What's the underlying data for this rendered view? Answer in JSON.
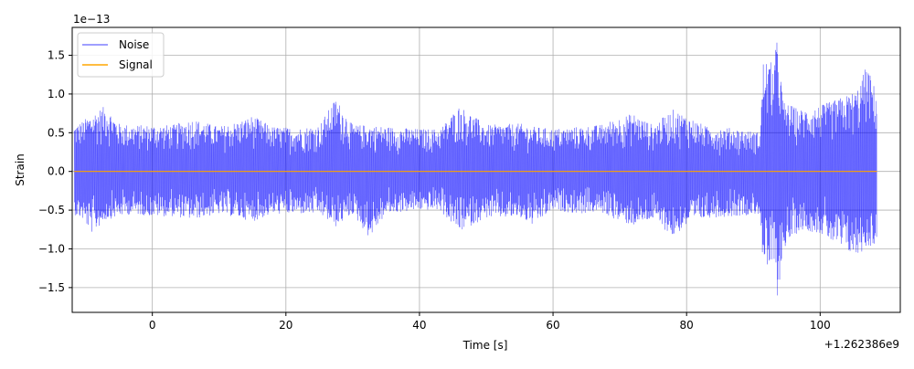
{
  "chart_data": {
    "type": "line",
    "xlabel": "Time [s]",
    "ylabel": "Strain",
    "x_offset_label": "+1.262386e9",
    "y_scale_label": "1e−13",
    "xlim": [
      -12,
      112
    ],
    "ylim": [
      -1.82,
      1.86
    ],
    "x_ticks": [
      0,
      20,
      40,
      60,
      80,
      100
    ],
    "x_tick_labels": [
      "0",
      "20",
      "40",
      "60",
      "80",
      "100"
    ],
    "y_ticks": [
      -1.5,
      -1.0,
      -0.5,
      0.0,
      0.5,
      1.0,
      1.5
    ],
    "y_tick_labels": [
      "−1.5",
      "−1.0",
      "−0.5",
      "0.0",
      "0.5",
      "1.0",
      "1.5"
    ],
    "grid": true,
    "legend_position": "upper-left",
    "series": [
      {
        "name": "Noise",
        "color": "#0000ff",
        "x_range": [
          -11.7,
          108.5
        ],
        "envelope": [
          {
            "x": -11.7,
            "lo": -0.56,
            "hi": 0.6
          },
          {
            "x": -10.5,
            "lo": -0.62,
            "hi": 0.65
          },
          {
            "x": -9,
            "lo": -0.8,
            "hi": 0.75
          },
          {
            "x": -7,
            "lo": -0.63,
            "hi": 0.85
          },
          {
            "x": -5,
            "lo": -0.58,
            "hi": 0.62
          },
          {
            "x": -3,
            "lo": -0.55,
            "hi": 0.6
          },
          {
            "x": 0,
            "lo": -0.58,
            "hi": 0.6
          },
          {
            "x": 3,
            "lo": -0.58,
            "hi": 0.6
          },
          {
            "x": 6,
            "lo": -0.62,
            "hi": 0.68
          },
          {
            "x": 10,
            "lo": -0.55,
            "hi": 0.58
          },
          {
            "x": 13,
            "lo": -0.6,
            "hi": 0.65
          },
          {
            "x": 15,
            "lo": -0.65,
            "hi": 0.72
          },
          {
            "x": 18,
            "lo": -0.55,
            "hi": 0.58
          },
          {
            "x": 22,
            "lo": -0.55,
            "hi": 0.56
          },
          {
            "x": 25,
            "lo": -0.55,
            "hi": 0.6
          },
          {
            "x": 27.5,
            "lo": -0.72,
            "hi": 0.95
          },
          {
            "x": 30,
            "lo": -0.55,
            "hi": 0.6
          },
          {
            "x": 32.5,
            "lo": -0.86,
            "hi": 0.6
          },
          {
            "x": 35,
            "lo": -0.55,
            "hi": 0.58
          },
          {
            "x": 40,
            "lo": -0.5,
            "hi": 0.55
          },
          {
            "x": 43,
            "lo": -0.5,
            "hi": 0.55
          },
          {
            "x": 46,
            "lo": -0.78,
            "hi": 0.85
          },
          {
            "x": 50,
            "lo": -0.6,
            "hi": 0.6
          },
          {
            "x": 55,
            "lo": -0.6,
            "hi": 0.62
          },
          {
            "x": 57,
            "lo": -0.7,
            "hi": 0.58
          },
          {
            "x": 60,
            "lo": -0.5,
            "hi": 0.55
          },
          {
            "x": 64,
            "lo": -0.55,
            "hi": 0.58
          },
          {
            "x": 67,
            "lo": -0.52,
            "hi": 0.6
          },
          {
            "x": 70,
            "lo": -0.65,
            "hi": 0.7
          },
          {
            "x": 72,
            "lo": -0.7,
            "hi": 0.75
          },
          {
            "x": 75,
            "lo": -0.62,
            "hi": 0.6
          },
          {
            "x": 78,
            "lo": -0.85,
            "hi": 0.8
          },
          {
            "x": 80,
            "lo": -0.7,
            "hi": 0.72
          },
          {
            "x": 83,
            "lo": -0.6,
            "hi": 0.58
          },
          {
            "x": 87,
            "lo": -0.58,
            "hi": 0.56
          },
          {
            "x": 91,
            "lo": -0.55,
            "hi": 0.5
          },
          {
            "x": 91.5,
            "lo": -1.32,
            "hi": 1.45
          },
          {
            "x": 93,
            "lo": -1.2,
            "hi": 1.4
          },
          {
            "x": 93.6,
            "lo": -1.65,
            "hi": 1.73
          },
          {
            "x": 94.5,
            "lo": -1.0,
            "hi": 0.9
          },
          {
            "x": 97,
            "lo": -0.75,
            "hi": 0.8
          },
          {
            "x": 100,
            "lo": -0.8,
            "hi": 0.85
          },
          {
            "x": 103,
            "lo": -1.0,
            "hi": 0.95
          },
          {
            "x": 105.5,
            "lo": -1.1,
            "hi": 1.05
          },
          {
            "x": 107,
            "lo": -0.98,
            "hi": 1.38
          },
          {
            "x": 108.5,
            "lo": -0.95,
            "hi": 1.0
          }
        ]
      },
      {
        "name": "Signal",
        "color": "#ffa500",
        "x": [
          -11.7,
          108.5
        ],
        "y": [
          0.0,
          0.0
        ]
      }
    ]
  }
}
